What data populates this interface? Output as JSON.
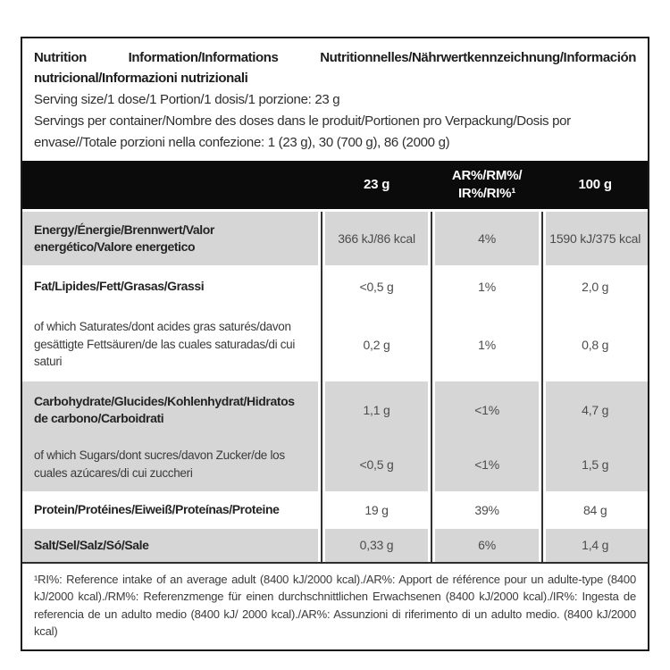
{
  "header": {
    "title": "Nutrition Information/Informations Nutritionnelles/Nährwertkennzeichnung/Información nutricional/Informazioni nutrizionali",
    "serving_size": "Serving size/1 dose/1 Portion/1 dosis/1 porzione: 23 g",
    "servings_per_container": "Servings per container/Nombre des doses dans le produit/Portionen pro Verpackung/Dosis por envase//Totale porzioni nella confezione: 1 (23 g), 30 (700 g), 86 (2000 g)"
  },
  "columns": {
    "per_serving": "23 g",
    "reference_intake_line1": "AR%/RM%/",
    "reference_intake_line2": "IR%/RI%¹",
    "per_100g": "100 g"
  },
  "rows": [
    {
      "label": "Energy/Énergie/Brennwert/Valor energético/Valore energetico",
      "per_serving": "366 kJ/86 kcal",
      "ri_percent": "4%",
      "per_100g": "1590 kJ/375 kcal"
    },
    {
      "label": "Fat/Lipides/Fett/Grasas/Grassi",
      "per_serving": "<0,5 g",
      "ri_percent": "1%",
      "per_100g": "2,0 g"
    },
    {
      "label": "of which Saturates/dont acides gras saturés/davon gesättigte Fettsäuren/de las cuales saturadas/di cui saturi",
      "per_serving": "0,2 g",
      "ri_percent": "1%",
      "per_100g": "0,8 g"
    },
    {
      "label": "Carbohydrate/Glucides/Kohlenhydrat/Hidratos de carbono/Carboidrati",
      "per_serving": "1,1 g",
      "ri_percent": "<1%",
      "per_100g": "4,7 g"
    },
    {
      "label": "of which Sugars/dont sucres/davon Zucker/de los cuales azúcares/di cui zuccheri",
      "per_serving": "<0,5 g",
      "ri_percent": "<1%",
      "per_100g": "1,5 g"
    },
    {
      "label": "Protein/Protéines/Eiweiß/Proteínas/Proteine",
      "per_serving": "19 g",
      "ri_percent": "39%",
      "per_100g": "84 g"
    },
    {
      "label": "Salt/Sel/Salz/Só/Sale",
      "per_serving": "0,33 g",
      "ri_percent": "6%",
      "per_100g": "1,4 g"
    }
  ],
  "footnote": "¹RI%: Reference intake of an average adult (8400 kJ/2000 kcal)./AR%: Apport de référence pour un adulte-type (8400 kJ/2000 kcal)./RM%: Referenzmenge für einen durchschnittlichen Erwachsenen (8400 kJ/2000 kcal)./IR%: Ingesta de referencia de un adulto medio (8400 kJ/ 2000 kcal)./AR%: Assunzioni di riferimento di un adulto medio. (8400 kJ/2000 kcal)",
  "colors": {
    "band": "#0b0b0b",
    "shaded": "#d6d6d6",
    "divider": "#333333"
  }
}
